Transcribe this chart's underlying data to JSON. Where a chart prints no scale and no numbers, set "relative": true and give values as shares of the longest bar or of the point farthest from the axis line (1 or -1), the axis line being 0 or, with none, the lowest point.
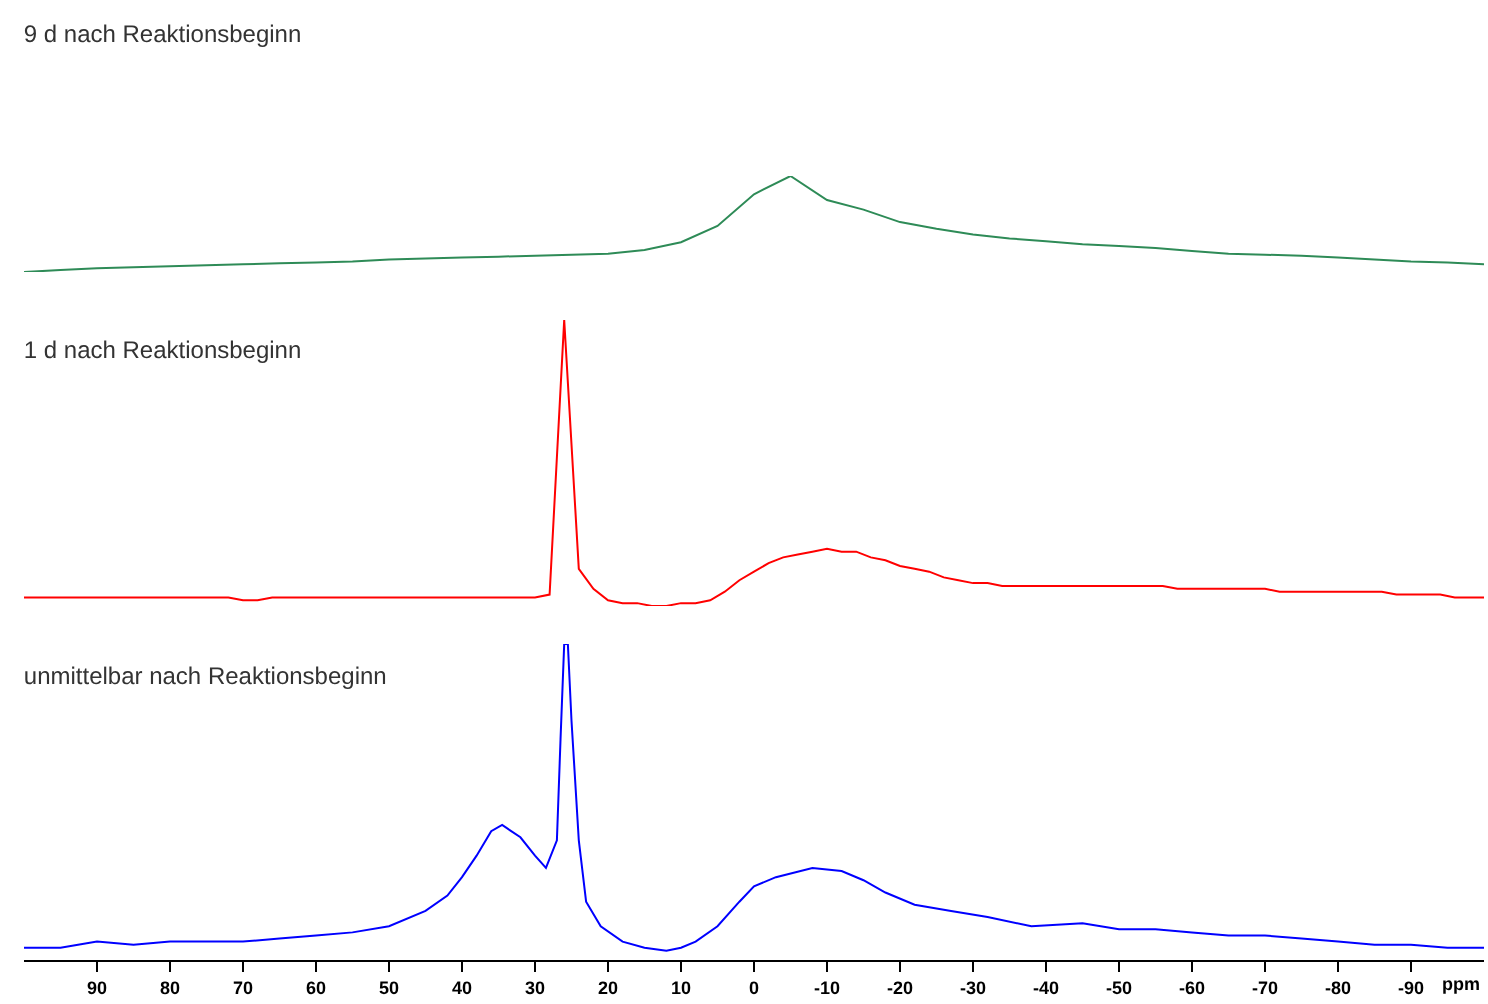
{
  "chart_data": [
    {
      "type": "line",
      "title": "9 d nach Reaktionsbeginn",
      "relative": true,
      "tick_labels": false,
      "categories": [
        null,
        null,
        null,
        null,
        null,
        null,
        null,
        null,
        null,
        null,
        null,
        null,
        null,
        null,
        null,
        null,
        null,
        null,
        null,
        null,
        null,
        null,
        null,
        null,
        null,
        null,
        null,
        null,
        null,
        null,
        null,
        null,
        null,
        null,
        null,
        null,
        null,
        null,
        null,
        null,
        null
      ],
      "series": [
        {
          "color": "#2e8b57",
          "values": [
            0,
            0.02,
            0.04,
            0.05,
            0.06,
            0.07,
            0.08,
            0.09,
            0.1,
            0.11,
            0.13,
            0.14,
            0.15,
            0.16,
            0.17,
            0.18,
            0.19,
            0.23,
            0.31,
            0.48,
            0.81,
            1,
            0.75,
            0.65,
            0.52,
            0.45,
            0.39,
            0.35,
            0.32,
            0.29,
            0.27,
            0.25,
            0.22,
            0.19,
            0.18,
            0.17,
            0.15,
            0.13,
            0.11,
            0.1,
            0.08
          ]
        }
      ]
    },
    {
      "type": "line",
      "title": "1 d nach Reaktionsbeginn",
      "relative": true,
      "tick_labels": false,
      "categories": [
        null,
        null,
        null,
        null,
        null,
        null,
        null,
        null,
        null,
        null,
        null,
        null,
        null,
        null,
        null,
        null,
        null,
        null,
        null,
        null,
        null,
        null,
        null,
        null,
        null,
        null,
        null,
        null,
        null,
        null,
        null,
        null,
        null,
        null,
        null,
        null,
        null,
        null,
        null,
        null,
        null,
        null,
        null,
        null,
        null,
        null,
        null,
        null,
        null,
        null,
        null,
        null,
        null,
        null,
        null,
        null,
        null,
        null,
        null,
        null,
        null,
        null,
        null,
        null,
        null,
        null,
        null,
        null,
        null,
        null,
        null,
        null,
        null,
        null,
        null,
        null,
        null,
        null,
        null,
        null,
        null,
        null,
        null,
        null,
        null,
        null,
        null,
        null,
        null,
        null,
        null,
        null,
        null,
        null,
        null,
        null,
        null,
        null,
        null,
        null,
        null
      ],
      "series": [
        {
          "color": "#ff0000",
          "values": [
            0.03,
            0.03,
            0.03,
            0.03,
            0.03,
            0.03,
            0.03,
            0.03,
            0.03,
            0.03,
            0.03,
            0.03,
            0.03,
            0.03,
            0.03,
            0.02,
            0.02,
            0.03,
            0.03,
            0.03,
            0.03,
            0.03,
            0.03,
            0.03,
            0.03,
            0.03,
            0.03,
            0.03,
            0.03,
            0.03,
            0.03,
            0.03,
            0.03,
            0.03,
            0.03,
            0.03,
            0.04,
            1,
            0.13,
            0.06,
            0.02,
            0.01,
            0.01,
            0,
            0,
            0.01,
            0.01,
            0.02,
            0.05,
            0.09,
            0.12,
            0.15,
            0.17,
            0.18,
            0.19,
            0.2,
            0.19,
            0.19,
            0.17,
            0.16,
            0.14,
            0.13,
            0.12,
            0.1,
            0.09,
            0.08,
            0.08,
            0.07,
            0.07,
            0.07,
            0.07,
            0.07,
            0.07,
            0.07,
            0.07,
            0.07,
            0.07,
            0.07,
            0.07,
            0.06,
            0.06,
            0.06,
            0.06,
            0.06,
            0.06,
            0.06,
            0.05,
            0.05,
            0.05,
            0.05,
            0.05,
            0.05,
            0.05,
            0.05,
            0.04,
            0.04,
            0.04,
            0.04,
            0.03,
            0.03,
            0.03
          ]
        }
      ]
    },
    {
      "type": "line",
      "title": "unmittelbar nach Reaktionsbeginn",
      "relative": true,
      "xlim": [
        100,
        -100
      ],
      "tick_labels": "x",
      "xlabel": "ppm",
      "xticks": [
        90,
        80,
        70,
        60,
        50,
        40,
        30,
        20,
        10,
        0,
        -10,
        -20,
        -30,
        -40,
        -50,
        -60,
        -70,
        -80,
        -90
      ],
      "x": [
        100,
        95,
        90,
        85,
        80,
        75,
        70,
        65,
        60,
        55,
        50,
        45,
        42,
        40,
        38,
        36,
        34.5,
        32,
        30,
        28.5,
        27,
        26.5,
        26,
        25.5,
        25,
        24,
        23,
        21,
        18,
        15,
        12,
        10,
        8,
        5,
        2,
        0,
        -3,
        -8,
        -12,
        -15,
        -18,
        -22,
        -27,
        -32,
        -38,
        -45,
        -50,
        -55,
        -60,
        -65,
        -70,
        -75,
        -80,
        -85,
        -90,
        -95,
        -100
      ],
      "series": [
        {
          "color": "#0000ff",
          "values": [
            0.01,
            0.01,
            0.03,
            0.02,
            0.03,
            0.03,
            0.03,
            0.04,
            0.05,
            0.06,
            0.08,
            0.13,
            0.18,
            0.24,
            0.31,
            0.39,
            0.41,
            0.37,
            0.31,
            0.27,
            0.36,
            0.69,
            1,
            1,
            0.75,
            0.36,
            0.16,
            0.08,
            0.03,
            0.01,
            0,
            0.01,
            0.03,
            0.08,
            0.16,
            0.21,
            0.24,
            0.27,
            0.26,
            0.23,
            0.19,
            0.15,
            0.13,
            0.11,
            0.08,
            0.09,
            0.07,
            0.07,
            0.06,
            0.05,
            0.05,
            0.04,
            0.03,
            0.02,
            0.02,
            0.01,
            0.01
          ]
        }
      ]
    }
  ]
}
